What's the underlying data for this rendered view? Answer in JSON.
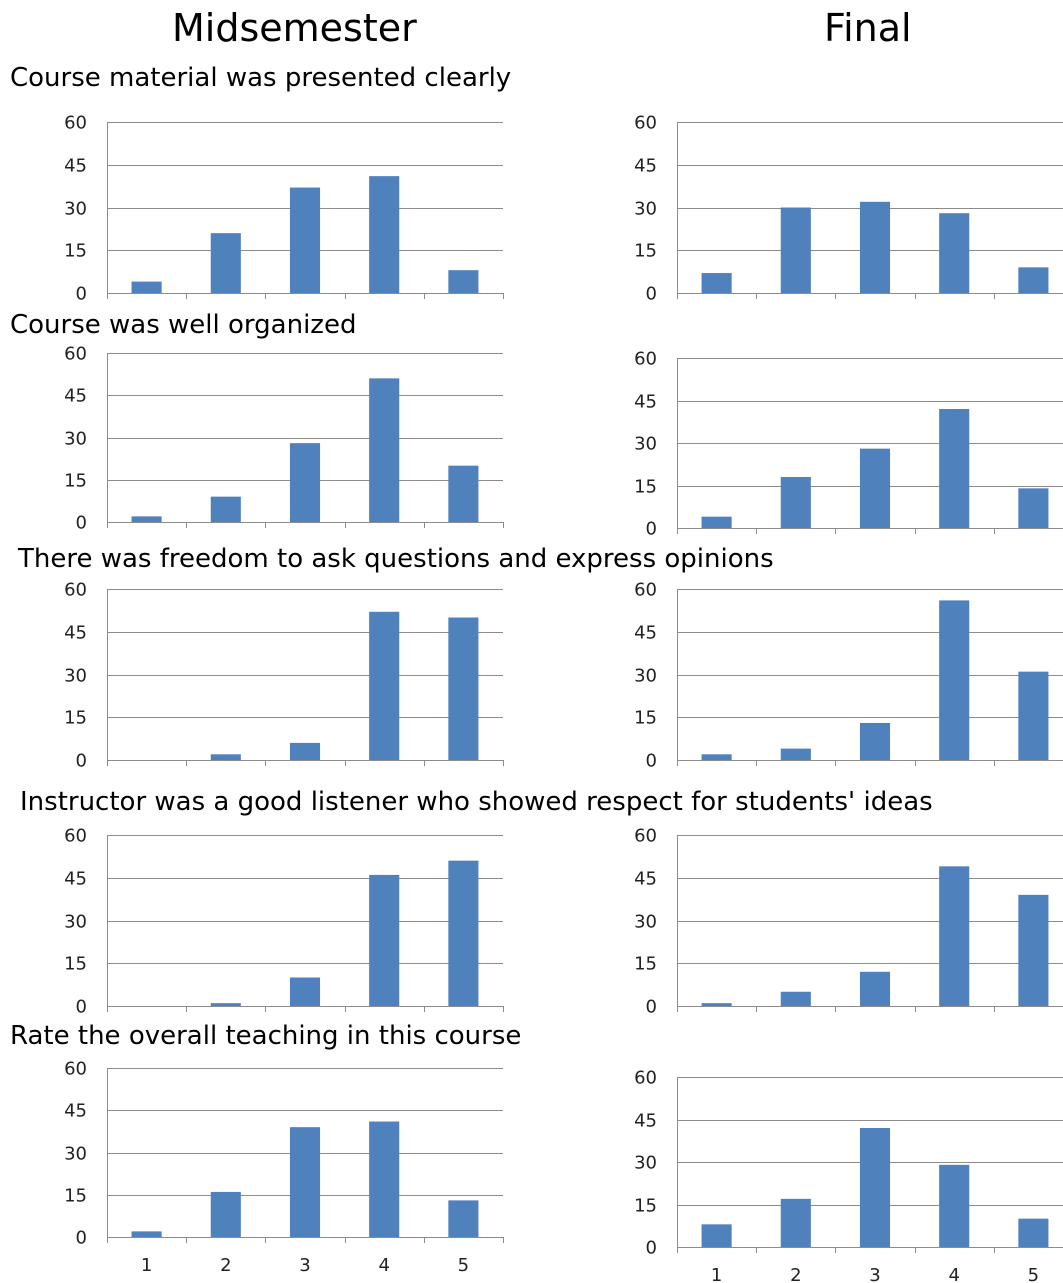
{
  "headers": {
    "left": "Midsemester",
    "right": "Final"
  },
  "sections": [
    "Course material was presented clearly",
    "Course was well organized",
    "There was freedom to ask questions and express opinions",
    "Instructor was a good listener who showed respect for students' ideas",
    "Rate the overall teaching in this course"
  ],
  "colors": {
    "bar": "#4f81bd",
    "grid": "#8c8c8c"
  },
  "chart_data": [
    {
      "type": "bar",
      "panel": "Midsemester",
      "title": "Course material was presented clearly",
      "categories": [
        "1",
        "2",
        "3",
        "4",
        "5"
      ],
      "values": [
        4,
        21,
        37,
        41,
        8
      ],
      "ylim": [
        0,
        60
      ],
      "yticks": [
        0,
        15,
        30,
        45,
        60
      ],
      "grid": true
    },
    {
      "type": "bar",
      "panel": "Final",
      "title": "Course material was presented clearly",
      "categories": [
        "1",
        "2",
        "3",
        "4",
        "5"
      ],
      "values": [
        7,
        30,
        32,
        28,
        9
      ],
      "ylim": [
        0,
        60
      ],
      "yticks": [
        0,
        15,
        30,
        45,
        60
      ],
      "grid": true
    },
    {
      "type": "bar",
      "panel": "Midsemester",
      "title": "Course was well organized",
      "categories": [
        "1",
        "2",
        "3",
        "4",
        "5"
      ],
      "values": [
        2,
        9,
        28,
        51,
        20
      ],
      "ylim": [
        0,
        60
      ],
      "yticks": [
        0,
        15,
        30,
        45,
        60
      ],
      "grid": true
    },
    {
      "type": "bar",
      "panel": "Final",
      "title": "Course was well organized",
      "categories": [
        "1",
        "2",
        "3",
        "4",
        "5"
      ],
      "values": [
        4,
        18,
        28,
        42,
        14
      ],
      "ylim": [
        0,
        60
      ],
      "yticks": [
        0,
        15,
        30,
        45,
        60
      ],
      "grid": true
    },
    {
      "type": "bar",
      "panel": "Midsemester",
      "title": "There was freedom to ask questions and express opinions",
      "categories": [
        "1",
        "2",
        "3",
        "4",
        "5"
      ],
      "values": [
        0,
        2,
        6,
        52,
        50
      ],
      "ylim": [
        0,
        60
      ],
      "yticks": [
        0,
        15,
        30,
        45,
        60
      ],
      "grid": true
    },
    {
      "type": "bar",
      "panel": "Final",
      "title": "There was freedom to ask questions and express opinions",
      "categories": [
        "1",
        "2",
        "3",
        "4",
        "5"
      ],
      "values": [
        2,
        4,
        13,
        56,
        31
      ],
      "ylim": [
        0,
        60
      ],
      "yticks": [
        0,
        15,
        30,
        45,
        60
      ],
      "grid": true
    },
    {
      "type": "bar",
      "panel": "Midsemester",
      "title": "Instructor was a good listener who showed respect for students' ideas",
      "categories": [
        "1",
        "2",
        "3",
        "4",
        "5"
      ],
      "values": [
        0,
        1,
        10,
        46,
        51
      ],
      "ylim": [
        0,
        60
      ],
      "yticks": [
        0,
        15,
        30,
        45,
        60
      ],
      "grid": true
    },
    {
      "type": "bar",
      "panel": "Final",
      "title": "Instructor was a good listener who showed respect for students' ideas",
      "categories": [
        "1",
        "2",
        "3",
        "4",
        "5"
      ],
      "values": [
        1,
        5,
        12,
        49,
        39
      ],
      "ylim": [
        0,
        60
      ],
      "yticks": [
        0,
        15,
        30,
        45,
        60
      ],
      "grid": true
    },
    {
      "type": "bar",
      "panel": "Midsemester",
      "title": "Rate the overall teaching in this course",
      "categories": [
        "1",
        "2",
        "3",
        "4",
        "5"
      ],
      "values": [
        2,
        16,
        39,
        41,
        13
      ],
      "ylim": [
        0,
        60
      ],
      "yticks": [
        0,
        15,
        30,
        45,
        60
      ],
      "grid": true,
      "show_x_labels": true
    },
    {
      "type": "bar",
      "panel": "Final",
      "title": "Rate the overall teaching in this course",
      "categories": [
        "1",
        "2",
        "3",
        "4",
        "5"
      ],
      "values": [
        8,
        17,
        42,
        29,
        10
      ],
      "ylim": [
        0,
        60
      ],
      "yticks": [
        0,
        15,
        30,
        45,
        60
      ],
      "grid": true,
      "show_x_labels": true
    }
  ]
}
